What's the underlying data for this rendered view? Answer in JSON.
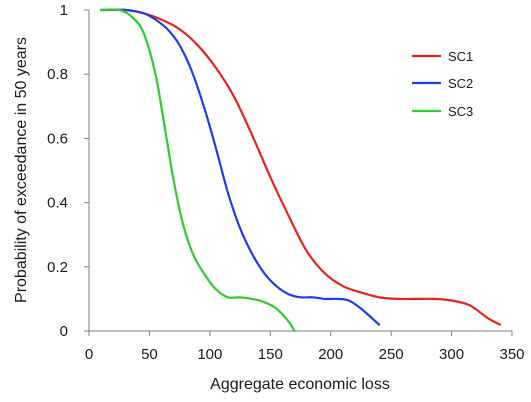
{
  "chart_data": {
    "type": "line",
    "title": "",
    "xlabel": "Aggregate economic loss",
    "ylabel": "Probability of exceedance in 50 years",
    "xlim": [
      0,
      350
    ],
    "ylim": [
      0,
      1
    ],
    "xticks": [
      0,
      50,
      100,
      150,
      200,
      250,
      300,
      350
    ],
    "yticks": [
      0,
      0.2,
      0.4,
      0.6,
      0.8,
      1
    ],
    "xtick_labels": [
      "0",
      "50",
      "100",
      "150",
      "200",
      "250",
      "300",
      "350"
    ],
    "ytick_labels": [
      "0",
      "0.2",
      "0.4",
      "0.6",
      "0.8",
      "1"
    ],
    "grid": false,
    "legend_position": "top-right",
    "series": [
      {
        "name": "SC1",
        "color": "#e8231e",
        "x": [
          10,
          30,
          45,
          60,
          75,
          90,
          105,
          120,
          135,
          150,
          165,
          180,
          195,
          210,
          225,
          240,
          255,
          270,
          285,
          300,
          315,
          330,
          340
        ],
        "y": [
          1.0,
          1.0,
          0.99,
          0.97,
          0.94,
          0.89,
          0.82,
          0.73,
          0.61,
          0.48,
          0.36,
          0.25,
          0.18,
          0.14,
          0.12,
          0.105,
          0.1,
          0.1,
          0.1,
          0.095,
          0.08,
          0.04,
          0.02
        ]
      },
      {
        "name": "SC2",
        "color": "#1f3ce8",
        "x": [
          10,
          30,
          45,
          55,
          65,
          75,
          85,
          95,
          105,
          115,
          125,
          135,
          145,
          155,
          165,
          175,
          185,
          195,
          205,
          215,
          225,
          240
        ],
        "y": [
          1.0,
          1.0,
          0.99,
          0.97,
          0.94,
          0.89,
          0.81,
          0.7,
          0.57,
          0.43,
          0.32,
          0.24,
          0.18,
          0.14,
          0.115,
          0.105,
          0.105,
          0.1,
          0.1,
          0.095,
          0.07,
          0.02
        ]
      },
      {
        "name": "SC3",
        "color": "#2fcc2f",
        "x": [
          10,
          25,
          35,
          45,
          55,
          62,
          70,
          78,
          86,
          95,
          105,
          115,
          125,
          135,
          145,
          155,
          165,
          170
        ],
        "y": [
          1.0,
          1.0,
          0.98,
          0.93,
          0.8,
          0.65,
          0.47,
          0.33,
          0.24,
          0.18,
          0.13,
          0.105,
          0.105,
          0.1,
          0.09,
          0.07,
          0.03,
          0.0
        ]
      }
    ]
  }
}
